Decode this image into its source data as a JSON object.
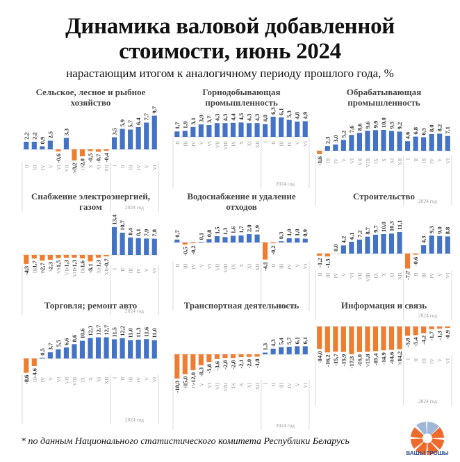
{
  "header": {
    "title_line1": "Динамика валовой добавленной",
    "title_line2": "стоимости, июнь 2024",
    "subtitle": "нарастающим итогом к аналогичному периоду прошлого года, %"
  },
  "colors": {
    "positive": "#4472c4",
    "negative": "#ed7d31",
    "axis": "#d9d9d9"
  },
  "footnote": "* по данным Национального статистического комитета Республики Беларусь",
  "logo": {
    "text": "ВАШЫ ГРОШЫ",
    "icon": "orange-segmented-circle-logo"
  },
  "chart_data": [
    {
      "type": "bar",
      "title": "Сельское, лесное и рыбное хозяйство",
      "categories": [
        "II",
        "III",
        "IV",
        "V",
        "VI",
        "VII",
        "VIII",
        "IX",
        "X",
        "XI",
        "XII",
        "I",
        "II",
        "III",
        "IV",
        "V",
        "VI"
      ],
      "values": [
        2.2,
        2.2,
        0.9,
        2.5,
        -0.6,
        3.3,
        -3.2,
        -2.0,
        -0.5,
        -0.7,
        -0.4,
        3.5,
        5.9,
        5.7,
        6.4,
        7.7,
        9.7
      ],
      "labels": [
        "2,2",
        "2,2",
        "0,9",
        "2,5",
        "-0,6",
        "3,3",
        "-3,2",
        "-2,0",
        "-0,5",
        "-0,7",
        "-0,4",
        "3,5",
        "5,9",
        "5,7",
        "6,4",
        "7,7",
        "9,7"
      ],
      "group_label": "2024 год",
      "group_start_index": 11
    },
    {
      "type": "bar",
      "title": "Горнодобывающая промышленность",
      "categories": [
        "II",
        "III",
        "IV",
        "V",
        "VI",
        "VII",
        "VIII",
        "IX",
        "X",
        "XI",
        "XII",
        "I",
        "II",
        "III",
        "IV",
        "V",
        "VI"
      ],
      "values": [
        1.7,
        1.9,
        3.1,
        3.9,
        3.7,
        4.3,
        4.3,
        4.4,
        4.5,
        4.3,
        4.3,
        4.0,
        6.3,
        6.1,
        5.3,
        4.8,
        4.9
      ],
      "labels": [
        "1,7",
        "1,9",
        "3,1",
        "3,9",
        "3,7",
        "4,3",
        "4,3",
        "4,4",
        "4,5",
        "4,3",
        "4,3",
        "4,0",
        "6,3",
        "6,1",
        "5,3",
        "4,8",
        "4,9"
      ],
      "group_label": "2024 год",
      "group_start_index": 11
    },
    {
      "type": "bar",
      "title": "Обрабатывающая промышленность",
      "categories": [
        "II",
        "III",
        "IV",
        "V",
        "VI",
        "VII",
        "VIII",
        "IX",
        "X",
        "XI",
        "XII",
        "I",
        "II",
        "III",
        "IV",
        "V",
        "VI"
      ],
      "values": [
        -1.6,
        2.3,
        3.0,
        5.2,
        7.6,
        8.6,
        9.6,
        9.9,
        10.0,
        9.5,
        9.2,
        4.6,
        6.8,
        6.5,
        8.0,
        8.2,
        7.1
      ],
      "labels": [
        "-1,6",
        "2,3",
        "3,0",
        "5,2",
        "7,6",
        "8,6",
        "9,6",
        "9,9",
        "10,0",
        "9,5",
        "9,2",
        "4,6",
        "6,8",
        "6,5",
        "8,0",
        "8,2",
        "7,1"
      ],
      "group_label": "2024 год",
      "group_start_index": 11
    },
    {
      "type": "bar",
      "title": "Снабжение электроэнергией, газом",
      "categories": [
        "II",
        "III",
        "IV",
        "V",
        "VI",
        "VII",
        "VIII",
        "IX",
        "X",
        "XI",
        "XII",
        "I",
        "II",
        "III",
        "IV",
        "V",
        "VI"
      ],
      "values": [
        -4.3,
        -1.7,
        -2.7,
        -2.3,
        -1.5,
        -1.3,
        -1.3,
        -1.6,
        -3.1,
        -1.3,
        -0.7,
        13.4,
        10.7,
        8.4,
        8.1,
        7.9,
        7.8
      ],
      "labels": [
        "-4,3",
        "-1,7",
        "-2,7",
        "-2,3",
        "-1,5",
        "-1,3",
        "-1,3",
        "-1,6",
        "-3,1",
        "-1,3",
        "-0,7",
        "13,4",
        "10,7",
        "8,4",
        "8,1",
        "7,9",
        "7,8"
      ],
      "group_label": "2024 год",
      "group_start_index": 11
    },
    {
      "type": "bar",
      "title": "Водоснабжение и удаление отходов",
      "categories": [
        "II",
        "III",
        "IV",
        "V",
        "VI",
        "VII",
        "VIII",
        "IX",
        "X",
        "XI",
        "XII",
        "I",
        "II",
        "III",
        "IV",
        "V",
        "VI"
      ],
      "values": [
        0.7,
        -0.5,
        -0.2,
        0.1,
        0.8,
        1.5,
        1.3,
        1.6,
        1.7,
        2.0,
        1.9,
        -4.1,
        -0.2,
        0.3,
        1.0,
        1.0,
        0.9
      ],
      "labels": [
        "0,7",
        "-0,5",
        "-0,2",
        "0,1",
        "0,8",
        "1,5",
        "1,3",
        "1,6",
        "1,7",
        "2,0",
        "1,9",
        "-4,1",
        "-0,2",
        "0,3",
        "1,0",
        "1,0",
        "0,9"
      ],
      "group_label": "2024 год",
      "group_start_index": 11
    },
    {
      "type": "bar",
      "title": "Строительство",
      "categories": [
        "II",
        "III",
        "IV",
        "V",
        "VI",
        "VII",
        "VIII",
        "IX",
        "X",
        "XI",
        "XII",
        "I",
        "II",
        "III",
        "IV",
        "V",
        "VI"
      ],
      "values": [
        -1.2,
        -1.5,
        0.0,
        4.2,
        6.1,
        7.2,
        8.7,
        9.7,
        10.0,
        10.3,
        11.1,
        -7.7,
        -0.6,
        4.3,
        9.3,
        9.0,
        8.8
      ],
      "labels": [
        "-1,2",
        "-1,5",
        "0,0",
        "4,2",
        "6,1",
        "7,2",
        "8,7",
        "9,7",
        "10,0",
        "10,3",
        "11,1",
        "-7,7",
        "-0,6",
        "4,3",
        "9,3",
        "9,0",
        "8,8"
      ],
      "group_label": "2024 год",
      "group_start_index": 11
    },
    {
      "type": "bar",
      "title": "Торговля; ремонт авто",
      "categories": [
        "II",
        "III",
        "IV",
        "V",
        "VI",
        "VII",
        "VIII",
        "IX",
        "X",
        "XI",
        "XII",
        "I",
        "II",
        "III",
        "IV",
        "V",
        "VI"
      ],
      "values": [
        -8.6,
        -4.6,
        0.5,
        3.7,
        5.5,
        6.6,
        8.6,
        10.6,
        12.3,
        12.7,
        12.7,
        11.5,
        12.2,
        11.0,
        11.3,
        11.6,
        11.0
      ],
      "labels": [
        "-8,6",
        "-4,6",
        "0,5",
        "3,7",
        "5,5",
        "6,6",
        "8,6",
        "10,6",
        "12,3",
        "12,7",
        "12,7",
        "11,5",
        "12,2",
        "11,0",
        "11,3",
        "11,6",
        "11,0"
      ],
      "group_label": "2024 год",
      "group_start_index": 11
    },
    {
      "type": "bar",
      "title": "Транспортная деятельность",
      "categories": [
        "II",
        "III",
        "IV",
        "V",
        "VI",
        "VII",
        "VIII",
        "IX",
        "X",
        "XI",
        "XII",
        "I",
        "II",
        "III",
        "IV",
        "V",
        "VI"
      ],
      "values": [
        -18.3,
        -15.0,
        -12.0,
        -8.3,
        -5.8,
        -3.6,
        -2.8,
        -2.8,
        -2.1,
        -2.0,
        -1.8,
        1.3,
        4.3,
        5.4,
        5.7,
        6.1,
        6.1
      ],
      "labels": [
        "-18,3",
        "-15,0",
        "-12,0",
        "-8,3",
        "-5,8",
        "-3,6",
        "-2,8",
        "-2,8",
        "-2,1",
        "-2,0",
        "-1,8",
        "1,3",
        "4,3",
        "5,4",
        "5,7",
        "6,1",
        "6,1"
      ],
      "group_label": "2024 год",
      "group_start_index": 11
    },
    {
      "type": "bar",
      "title": "Информация и связь",
      "categories": [
        "II",
        "III",
        "IV",
        "V",
        "VI",
        "VII",
        "VIII",
        "IX",
        "X",
        "XI",
        "XII",
        "I",
        "II",
        "III",
        "IV",
        "V",
        "VI"
      ],
      "values": [
        -14.0,
        -16.2,
        -15.7,
        -15.9,
        -17.3,
        -16.0,
        -15.8,
        -15.4,
        -14.9,
        -14.6,
        -14.2,
        -5.8,
        -5.4,
        -4.2,
        -1.7,
        -1.3,
        -0.9
      ],
      "labels": [
        "-14,0",
        "-16,2",
        "-15,7",
        "-15,9",
        "-17,3",
        "-16,0",
        "-15,8",
        "-15,4",
        "-14,9",
        "-14,6",
        "-14,2",
        "-5,8",
        "-5,4",
        "-4,2",
        "-1,7",
        "-1,3",
        "-0,9"
      ],
      "group_label": "2024 год",
      "group_start_index": 11
    }
  ]
}
